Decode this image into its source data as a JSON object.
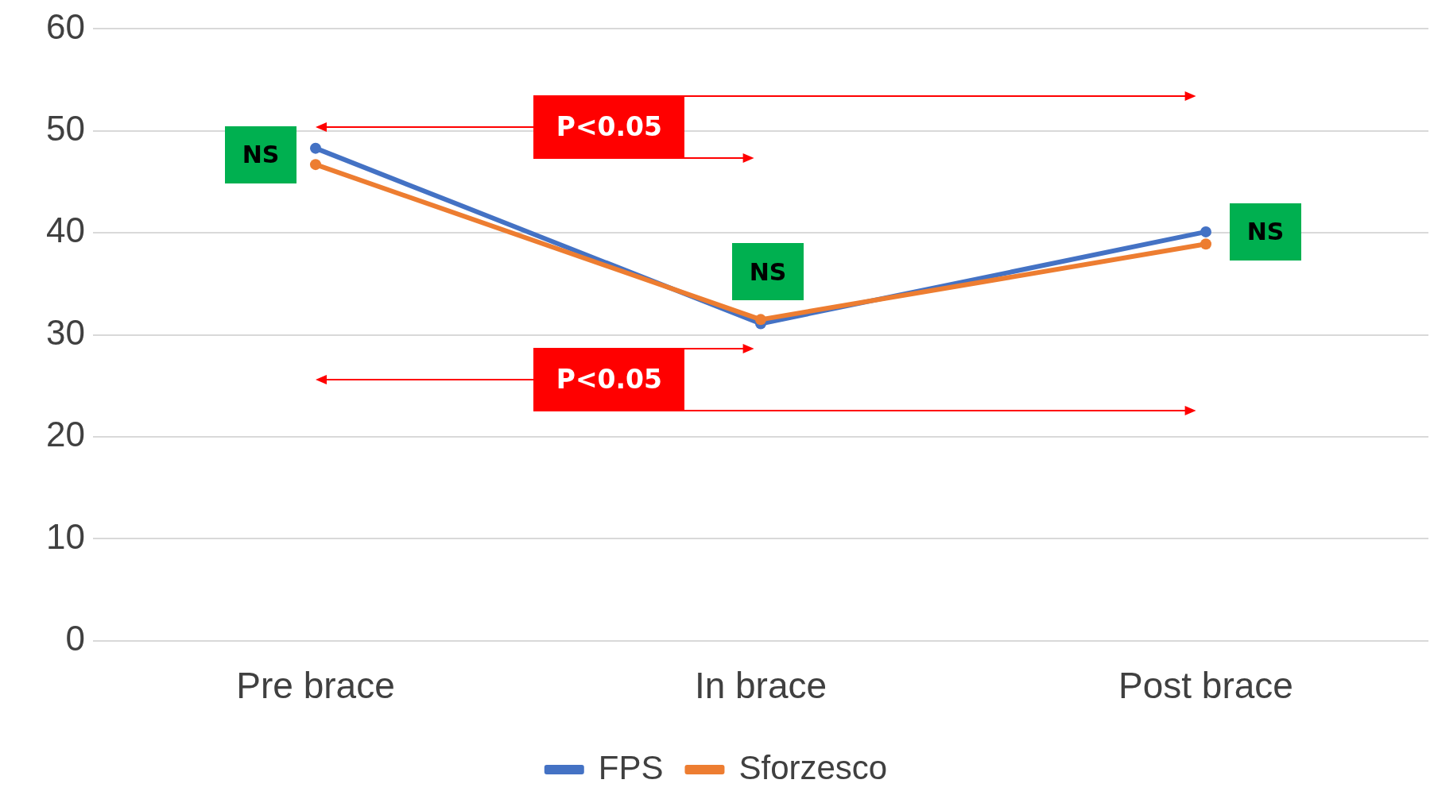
{
  "chart_data": {
    "type": "line",
    "categories": [
      "Pre brace",
      "In brace",
      "Post brace"
    ],
    "series": [
      {
        "name": "FPS",
        "color": "#4472c4",
        "values": [
          48.3,
          31.1,
          40.1
        ]
      },
      {
        "name": "Sforzesco",
        "color": "#ed7d31",
        "values": [
          46.7,
          31.5,
          38.9
        ]
      }
    ],
    "ylim": [
      0,
      60
    ],
    "yticks": [
      0,
      10,
      20,
      30,
      40,
      50,
      60
    ],
    "grid": "y",
    "legend": "bottom",
    "marker": "circle",
    "line_style": "solid",
    "annotations": [
      "NS",
      "NS",
      "NS",
      "P<0.05",
      "P<0.05"
    ]
  }
}
